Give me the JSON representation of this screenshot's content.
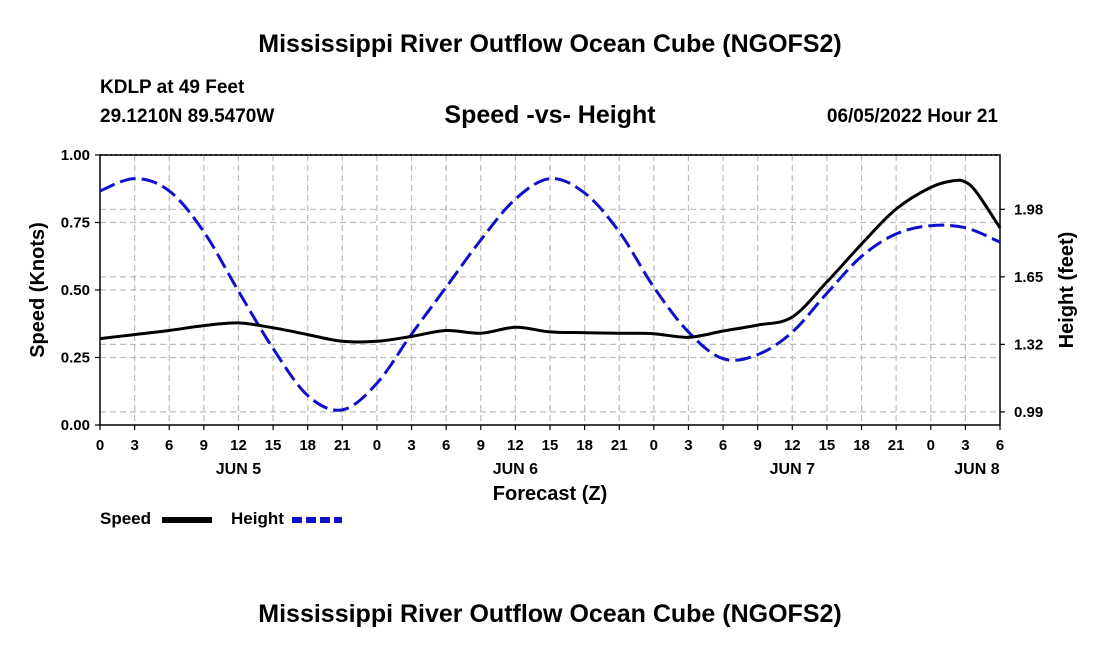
{
  "header": {
    "title": "Mississippi River Outflow Ocean Cube (NGOFS2)",
    "station": "KDLP at 49 Feet",
    "coords": "29.1210N  89.5470W",
    "subtitle": "Speed -vs- Height",
    "run_time": "06/05/2022 Hour 21"
  },
  "footer": {
    "title": "Mississippi River Outflow Ocean Cube (NGOFS2)"
  },
  "chart_data": {
    "type": "line",
    "title": "Speed -vs- Height",
    "xlabel": "Forecast (Z)",
    "ylabel_left": "Speed (Knots)",
    "ylabel_right": "Height (feet)",
    "x_unit": "hours since Jun 5 00Z",
    "xlim": [
      0,
      78
    ],
    "ylim_left": [
      0,
      1.0
    ],
    "ylim_right": [
      0.926,
      2.2455
    ],
    "grid": true,
    "x_ticks": [
      {
        "x": 0,
        "label": "0"
      },
      {
        "x": 3,
        "label": "3"
      },
      {
        "x": 6,
        "label": "6"
      },
      {
        "x": 9,
        "label": "9"
      },
      {
        "x": 12,
        "label": "12"
      },
      {
        "x": 15,
        "label": "15"
      },
      {
        "x": 18,
        "label": "18"
      },
      {
        "x": 21,
        "label": "21"
      },
      {
        "x": 24,
        "label": "0"
      },
      {
        "x": 27,
        "label": "3"
      },
      {
        "x": 30,
        "label": "6"
      },
      {
        "x": 33,
        "label": "9"
      },
      {
        "x": 36,
        "label": "12"
      },
      {
        "x": 39,
        "label": "15"
      },
      {
        "x": 42,
        "label": "18"
      },
      {
        "x": 45,
        "label": "21"
      },
      {
        "x": 48,
        "label": "0"
      },
      {
        "x": 51,
        "label": "3"
      },
      {
        "x": 54,
        "label": "6"
      },
      {
        "x": 57,
        "label": "9"
      },
      {
        "x": 60,
        "label": "12"
      },
      {
        "x": 63,
        "label": "15"
      },
      {
        "x": 66,
        "label": "18"
      },
      {
        "x": 69,
        "label": "21"
      },
      {
        "x": 72,
        "label": "0"
      },
      {
        "x": 75,
        "label": "3"
      },
      {
        "x": 78,
        "label": "6"
      }
    ],
    "day_labels": [
      {
        "x": 12,
        "label": "JUN 5"
      },
      {
        "x": 36,
        "label": "JUN 6"
      },
      {
        "x": 60,
        "label": "JUN 7"
      },
      {
        "x": 76,
        "label": "JUN 8"
      }
    ],
    "left_ticks": [
      {
        "value": 0,
        "label": "0.00"
      },
      {
        "value": 0.25,
        "label": "0.25"
      },
      {
        "value": 0.5,
        "label": "0.50"
      },
      {
        "value": 0.75,
        "label": "0.75"
      },
      {
        "value": 1.0,
        "label": "1.00"
      }
    ],
    "right_ticks": [
      {
        "value": 0.99,
        "label": "0.99"
      },
      {
        "value": 1.32,
        "label": "1.32"
      },
      {
        "value": 1.65,
        "label": "1.65"
      },
      {
        "value": 1.98,
        "label": "1.98"
      }
    ],
    "series": [
      {
        "name": "Speed",
        "axis": "left",
        "color": "#000000",
        "style": "solid",
        "x": [
          0,
          3,
          6,
          9,
          12,
          15,
          18,
          21,
          24,
          27,
          30,
          33,
          36,
          39,
          42,
          45,
          48,
          51,
          54,
          57,
          60,
          63,
          66,
          69,
          72,
          74,
          75,
          76,
          78
        ],
        "values": [
          0.32,
          0.335,
          0.35,
          0.368,
          0.378,
          0.36,
          0.335,
          0.31,
          0.31,
          0.328,
          0.35,
          0.34,
          0.362,
          0.345,
          0.342,
          0.34,
          0.338,
          0.325,
          0.348,
          0.37,
          0.4,
          0.53,
          0.67,
          0.8,
          0.88,
          0.905,
          0.9,
          0.86,
          0.73
        ]
      },
      {
        "name": "Height",
        "axis": "right",
        "color": "#1010cc",
        "style": "dashed",
        "x": [
          0,
          3,
          6,
          9,
          12,
          15,
          18,
          21,
          24,
          27,
          30,
          33,
          36,
          39,
          42,
          45,
          48,
          51,
          54,
          57,
          60,
          63,
          66,
          69,
          72,
          75,
          78
        ],
        "values": [
          2.07,
          2.13,
          2.07,
          1.87,
          1.58,
          1.3,
          1.07,
          1.0,
          1.13,
          1.37,
          1.6,
          1.83,
          2.03,
          2.13,
          2.06,
          1.87,
          1.6,
          1.38,
          1.25,
          1.27,
          1.38,
          1.57,
          1.75,
          1.86,
          1.9,
          1.89,
          1.82
        ]
      }
    ],
    "legend": [
      {
        "name": "Speed",
        "color": "#000000",
        "style": "solid"
      },
      {
        "name": "Height",
        "color": "#1010cc",
        "style": "dashed"
      }
    ],
    "legend_position": "bottom-left"
  }
}
